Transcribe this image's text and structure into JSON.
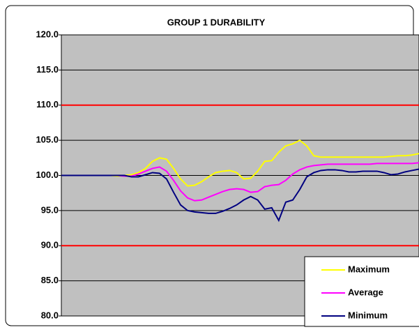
{
  "chart_data": {
    "type": "line",
    "title": "GROUP 1 DURABILITY",
    "series": [
      {
        "name": "Maximum",
        "color": "#ffff00",
        "values": [
          100,
          100,
          100,
          100,
          100,
          100,
          100,
          100,
          99.9,
          100,
          100.1,
          100.4,
          101.0,
          102.0,
          102.5,
          102.3,
          101.0,
          99.5,
          98.5,
          98.6,
          99.1,
          99.8,
          100.4,
          100.6,
          100.7,
          100.4,
          99.5,
          99.6,
          100.6,
          102.0,
          102.1,
          103.3,
          104.2,
          104.5,
          105.0,
          104.2,
          102.8,
          102.6,
          102.6,
          102.6,
          102.6,
          102.6,
          102.6,
          102.6,
          102.6,
          102.6,
          102.6,
          102.7,
          102.8,
          102.8,
          102.9,
          103.1
        ]
      },
      {
        "name": "Average",
        "color": "#ff00ff",
        "values": [
          100,
          100,
          100,
          100,
          100,
          100,
          100,
          100,
          100,
          99.9,
          99.9,
          100.2,
          100.6,
          101.0,
          101.2,
          100.6,
          99.3,
          97.8,
          96.8,
          96.4,
          96.5,
          96.9,
          97.3,
          97.7,
          98.0,
          98.1,
          98.0,
          97.6,
          97.7,
          98.4,
          98.6,
          98.7,
          99.3,
          100.2,
          100.8,
          101.2,
          101.4,
          101.5,
          101.6,
          101.6,
          101.6,
          101.6,
          101.6,
          101.6,
          101.6,
          101.7,
          101.7,
          101.7,
          101.7,
          101.7,
          101.7,
          101.8
        ]
      },
      {
        "name": "Minimum",
        "color": "#000080",
        "values": [
          100,
          100,
          100,
          100,
          100,
          100,
          100,
          100,
          100,
          100,
          99.8,
          99.8,
          100.1,
          100.4,
          100.3,
          99.5,
          97.6,
          95.8,
          95.0,
          94.8,
          94.7,
          94.6,
          94.6,
          94.9,
          95.3,
          95.8,
          96.5,
          97.0,
          96.5,
          95.2,
          95.4,
          93.6,
          96.2,
          96.5,
          98.0,
          99.8,
          100.4,
          100.7,
          100.8,
          100.8,
          100.7,
          100.5,
          100.5,
          100.6,
          100.6,
          100.6,
          100.4,
          100.1,
          100.2,
          100.5,
          100.7,
          100.9
        ]
      }
    ],
    "ylim": [
      80,
      120
    ],
    "yticks": [
      {
        "value": 80,
        "label": "80.0"
      },
      {
        "value": 85,
        "label": "85.0"
      },
      {
        "value": 90,
        "label": "90.0"
      },
      {
        "value": 95,
        "label": "95.0"
      },
      {
        "value": 100,
        "label": "100.0"
      },
      {
        "value": 105,
        "label": "105.0"
      },
      {
        "value": 110,
        "label": "110.0"
      },
      {
        "value": 115,
        "label": "115.0"
      },
      {
        "value": 120,
        "label": "120.0"
      }
    ],
    "grid": true,
    "reference_lines": [
      {
        "value": 90,
        "color": "#ff0000"
      },
      {
        "value": 110,
        "color": "#ff0000"
      }
    ],
    "plot_background": "#c0c0c0",
    "legend": "lower right"
  }
}
